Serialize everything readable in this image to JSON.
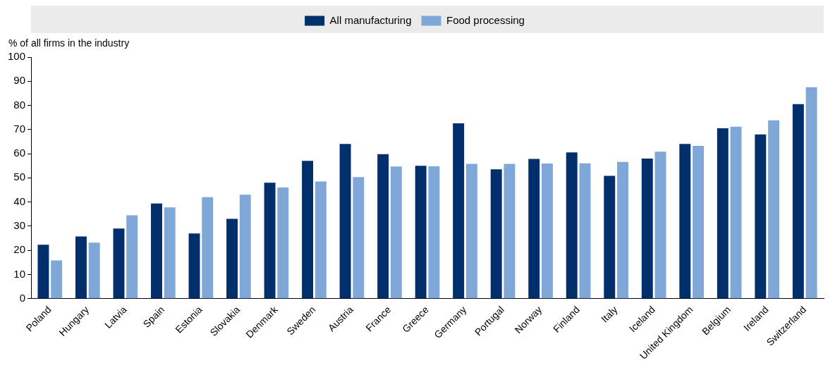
{
  "chart_data": {
    "type": "bar",
    "ylabel": "% of all firms in the industry",
    "categories": [
      "Poland",
      "Hungary",
      "Latvia",
      "Spain",
      "Estonia",
      "Slovakia",
      "Denmark",
      "Sweden",
      "Austria",
      "France",
      "Greece",
      "Germany",
      "Portugal",
      "Norway",
      "Finland",
      "Italy",
      "Iceland",
      "United Kingdom",
      "Belgium",
      "Ireland",
      "Switzerland"
    ],
    "series": [
      {
        "name": "All manufacturing",
        "color": "#002f6c",
        "values": [
          22.3,
          25.7,
          29,
          39.4,
          27,
          33,
          48,
          57,
          64,
          59.8,
          55,
          72.6,
          53.5,
          57.8,
          60.5,
          50.8,
          58,
          64,
          70.5,
          68,
          80.5
        ]
      },
      {
        "name": "Food processing",
        "color": "#7fa8d9",
        "values": [
          15.8,
          23.2,
          34.5,
          37.8,
          42,
          43,
          46,
          48.5,
          50.3,
          54.7,
          54.8,
          55.8,
          55.8,
          55.9,
          56,
          56.6,
          60.8,
          63.2,
          71.2,
          73.8,
          87.5
        ]
      }
    ],
    "ylim": [
      0,
      100
    ],
    "yticks": [
      0,
      10,
      20,
      30,
      40,
      50,
      60,
      70,
      80,
      90,
      100
    ],
    "grid": false,
    "legend": "top"
  }
}
